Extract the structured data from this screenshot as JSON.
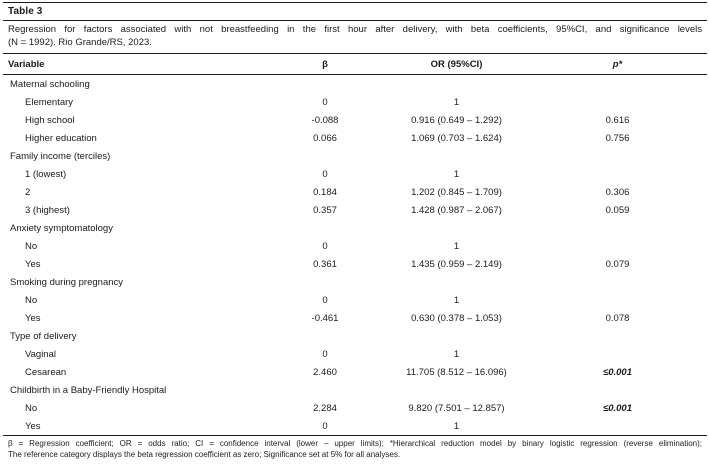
{
  "table": {
    "label": "Table 3",
    "caption_line1": "Regression for factors associated with not breastfeeding in the first hour after delivery, with beta coefficients, 95%CI, and significance levels",
    "caption_line2": "(N = 1992). Rio Grande/RS, 2023.",
    "columns": [
      "Variable",
      "β",
      "OR (95%CI)",
      "p*"
    ],
    "rows": [
      {
        "type": "group",
        "label": "Maternal schooling",
        "beta": "",
        "or": "",
        "p": "",
        "sig": false
      },
      {
        "type": "item",
        "label": "Elementary",
        "beta": "0",
        "or": "1",
        "p": "",
        "sig": false
      },
      {
        "type": "item",
        "label": "High school",
        "beta": "-0.088",
        "or": "0.916 (0.649 – 1.292)",
        "p": "0.616",
        "sig": false
      },
      {
        "type": "item",
        "label": "Higher education",
        "beta": "0.066",
        "or": "1.069 (0.703 – 1.624)",
        "p": "0.756",
        "sig": false
      },
      {
        "type": "group",
        "label": "Family income (terciles)",
        "beta": "",
        "or": "",
        "p": "",
        "sig": false
      },
      {
        "type": "item",
        "label": "1 (lowest)",
        "beta": "0",
        "or": "1",
        "p": "",
        "sig": false
      },
      {
        "type": "item",
        "label": "2",
        "beta": "0.184",
        "or": "1.202 (0.845 – 1.709)",
        "p": "0.306",
        "sig": false
      },
      {
        "type": "item",
        "label": "3 (highest)",
        "beta": "0.357",
        "or": "1.428 (0.987 – 2.067)",
        "p": "0.059",
        "sig": false
      },
      {
        "type": "group",
        "label": "Anxiety symptomatology",
        "beta": "",
        "or": "",
        "p": "",
        "sig": false
      },
      {
        "type": "item",
        "label": "No",
        "beta": "0",
        "or": "1",
        "p": "",
        "sig": false
      },
      {
        "type": "item",
        "label": "Yes",
        "beta": "0.361",
        "or": "1.435 (0.959 – 2.149)",
        "p": "0.079",
        "sig": false
      },
      {
        "type": "group",
        "label": "Smoking during pregnancy",
        "beta": "",
        "or": "",
        "p": "",
        "sig": false
      },
      {
        "type": "item",
        "label": "No",
        "beta": "0",
        "or": "1",
        "p": "",
        "sig": false
      },
      {
        "type": "item",
        "label": "Yes",
        "beta": "-0.461",
        "or": "0.630 (0.378 – 1.053)",
        "p": "0.078",
        "sig": false
      },
      {
        "type": "group",
        "label": "Type of delivery",
        "beta": "",
        "or": "",
        "p": "",
        "sig": false
      },
      {
        "type": "item",
        "label": "Vaginal",
        "beta": "0",
        "or": "1",
        "p": "",
        "sig": false
      },
      {
        "type": "item",
        "label": "Cesarean",
        "beta": "2.460",
        "or": "11.705 (8.512 – 16.096)",
        "p": "≤0.001",
        "sig": true
      },
      {
        "type": "group",
        "label": "Childbirth in a Baby-Friendly Hospital",
        "beta": "",
        "or": "",
        "p": "",
        "sig": false
      },
      {
        "type": "item",
        "label": "No",
        "beta": "2.284",
        "or": "9.820 (7.501 – 12.857)",
        "p": "≤0.001",
        "sig": true
      },
      {
        "type": "item",
        "label": "Yes",
        "beta": "0",
        "or": "1",
        "p": "",
        "sig": false
      }
    ],
    "footnote_line1": "β = Regression coefficient; OR = odds ratio; CI = confidence interval (lower – upper limits); *Hierarchical reduction model by binary logistic regression (reverse elimination);",
    "footnote_line2": "The reference category displays the beta regression coefficient as zero; Significance set at 5% for all analyses."
  }
}
